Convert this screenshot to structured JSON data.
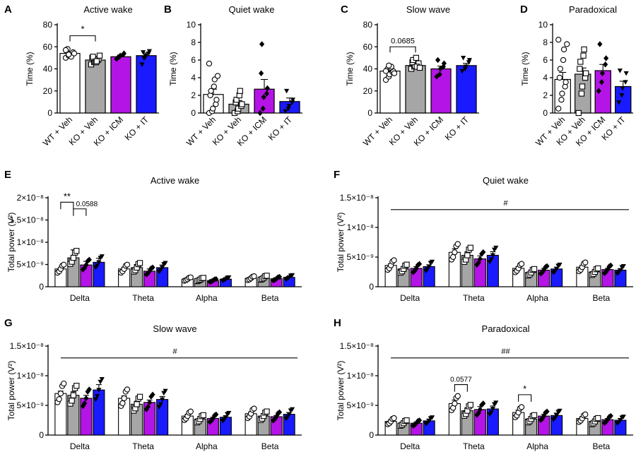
{
  "colors": {
    "wt_veh": "#ffffff",
    "ko_veh": "#a6a6a6",
    "ko_icm": "#b414e6",
    "ko_it": "#1a1aff",
    "outline": "#000000"
  },
  "groups": [
    "WT + Veh",
    "KO + Veh",
    "KO + ICM",
    "KO + IT"
  ],
  "markers": [
    "circle-open",
    "square-open",
    "diamond-filled",
    "triangle-down-filled"
  ],
  "chart_data": [
    {
      "panel": "A",
      "type": "bar",
      "title": "Active wake",
      "ylabel": "Time (%)",
      "ylim": [
        0,
        80
      ],
      "yticks": [
        0,
        20,
        40,
        60,
        80
      ],
      "categories": [
        "WT + Veh",
        "KO + Veh",
        "KO + ICM",
        "KO + IT"
      ],
      "values": [
        54,
        48,
        51,
        52
      ],
      "errors": [
        1.3,
        1.5,
        1.6,
        2.5
      ],
      "points": [
        [
          50,
          52,
          53,
          54,
          55,
          56,
          58,
          52,
          51,
          54,
          57,
          53
        ],
        [
          44,
          46,
          47,
          48,
          49,
          50,
          51,
          46,
          47,
          52
        ],
        [
          49,
          51,
          52,
          53,
          54,
          50
        ],
        [
          44,
          50,
          52,
          54,
          56,
          55,
          50
        ]
      ],
      "brackets": [
        {
          "groups": [
            0,
            1
          ],
          "label": "*"
        }
      ]
    },
    {
      "panel": "B",
      "type": "bar",
      "title": "Quiet wake",
      "ylabel": "Time (%)",
      "ylim": [
        0,
        10
      ],
      "yticks": [
        0,
        2,
        4,
        6,
        8,
        10
      ],
      "categories": [
        "WT + Veh",
        "KO + Veh",
        "KO + ICM",
        "KO + IT"
      ],
      "values": [
        2.1,
        1.0,
        2.7,
        1.3
      ],
      "errors": [
        0.6,
        0.4,
        1.1,
        0.4
      ],
      "points": [
        [
          0,
          0.2,
          0.5,
          1,
          1.5,
          2,
          2.5,
          3,
          3.8,
          4.2,
          5.6
        ],
        [
          0,
          0.2,
          0.5,
          0.8,
          1,
          1.2,
          1.5,
          2,
          2.5
        ],
        [
          0,
          0.5,
          1.8,
          2.2,
          2.8,
          4.5,
          7.8
        ],
        [
          0.2,
          0.5,
          0.8,
          1.2,
          1.5,
          2.5
        ]
      ],
      "brackets": []
    },
    {
      "panel": "C",
      "type": "bar",
      "title": "Slow wave",
      "ylabel": "Time (%)",
      "ylim": [
        0,
        80
      ],
      "yticks": [
        0,
        20,
        40,
        60,
        80
      ],
      "categories": [
        "WT + Veh",
        "KO + Veh",
        "KO + ICM",
        "KO + IT"
      ],
      "values": [
        38,
        43,
        40,
        43
      ],
      "errors": [
        1.5,
        1.5,
        2.5,
        2
      ],
      "points": [
        [
          30,
          33,
          35,
          37,
          38,
          39,
          40,
          41,
          42,
          36,
          38,
          43
        ],
        [
          40,
          42,
          43,
          44,
          45,
          46,
          48,
          50,
          42,
          41
        ],
        [
          33,
          35,
          40,
          42,
          45,
          48
        ],
        [
          38,
          40,
          42,
          46,
          48,
          50
        ]
      ],
      "brackets": [
        {
          "groups": [
            0,
            1
          ],
          "label": "0.0685"
        }
      ]
    },
    {
      "panel": "D",
      "type": "bar",
      "title": "Paradoxical",
      "ylabel": "Time (%)",
      "ylim": [
        0,
        10
      ],
      "yticks": [
        0,
        2,
        4,
        6,
        8,
        10
      ],
      "categories": [
        "WT + Veh",
        "KO + Veh",
        "KO + ICM",
        "KO + IT"
      ],
      "values": [
        3.8,
        4.4,
        4.8,
        3.0
      ],
      "errors": [
        0.8,
        0.7,
        0.7,
        0.6
      ],
      "points": [
        [
          0.5,
          1.5,
          2.2,
          3,
          3.5,
          4,
          5,
          6,
          7.2,
          7.8,
          8.3
        ],
        [
          0,
          2.2,
          3,
          4,
          4.5,
          5,
          5.8,
          6.5,
          7.2
        ],
        [
          2.5,
          3.5,
          4.5,
          5.5,
          6.2,
          7.8
        ],
        [
          1.2,
          2,
          2.8,
          3.5,
          4.5,
          4.8
        ]
      ],
      "brackets": []
    },
    {
      "panel": "E",
      "type": "bar",
      "title": "Active wake",
      "ylabel": "Total power (V²)",
      "ylim": [
        0,
        2e-08
      ],
      "yticklabels": [
        "0",
        "5×10⁻⁹",
        "1×10⁻⁸",
        "1.5×10⁻⁸",
        "2×10⁻⁸"
      ],
      "yticks": [
        0,
        5e-09,
        1e-08,
        1.5e-08,
        2e-08
      ],
      "categories": [
        "Delta",
        "Theta",
        "Alpha",
        "Beta"
      ],
      "series": [
        {
          "values": [
            4e-09,
            6.5e-09,
            4.9e-09,
            5.5e-09
          ],
          "errors": [
            3e-10,
            1.8e-09,
            8e-10,
            9e-10
          ]
        },
        {
          "values": [
            4e-09,
            4.3e-09,
            3.5e-09,
            4.3e-09
          ],
          "errors": [
            4e-10,
            7e-10,
            5e-10,
            6e-10
          ]
        },
        {
          "values": [
            1.7e-09,
            1.6e-09,
            1.4e-09,
            1.7e-09
          ],
          "errors": [
            2e-10,
            2e-10,
            1e-10,
            2e-10
          ]
        },
        {
          "values": [
            1.9e-09,
            2e-09,
            1.8e-09,
            2.1e-09
          ],
          "errors": [
            2e-10,
            3e-10,
            2e-10,
            2e-10
          ]
        }
      ],
      "brackets": [
        {
          "category": 0,
          "groups": [
            0,
            1
          ],
          "label": "**"
        },
        {
          "category": 0,
          "groups": [
            1,
            2
          ],
          "label": "0.0588"
        }
      ],
      "hash_line": null
    },
    {
      "panel": "F",
      "type": "bar",
      "title": "Quiet wake",
      "ylabel": "Total power (V²)",
      "ylim": [
        0,
        1.5e-08
      ],
      "yticklabels": [
        "0",
        "5×10⁻⁹",
        "1×10⁻⁸",
        "1.5×10⁻⁸"
      ],
      "yticks": [
        0,
        5e-09,
        1e-08,
        1.5e-08
      ],
      "categories": [
        "Delta",
        "Theta",
        "Alpha",
        "Beta"
      ],
      "series": [
        {
          "values": [
            3.6e-09,
            3e-09,
            3.1e-09,
            3.4e-09
          ],
          "errors": [
            3e-10,
            4e-10,
            3e-10,
            3e-10
          ]
        },
        {
          "values": [
            5.8e-09,
            5.3e-09,
            4.7e-09,
            5.3e-09
          ],
          "errors": [
            6e-10,
            6e-10,
            5e-10,
            6e-10
          ]
        },
        {
          "values": [
            3.1e-09,
            2.4e-09,
            2.8e-09,
            3e-09
          ],
          "errors": [
            3e-10,
            3e-10,
            3e-10,
            3e-10
          ]
        },
        {
          "values": [
            3.3e-09,
            2.5e-09,
            2.9e-09,
            2.8e-09
          ],
          "errors": [
            3e-10,
            3e-10,
            2e-10,
            2e-10
          ]
        }
      ],
      "brackets": [],
      "hash_line": {
        "label": "#",
        "value": 1.3e-08
      }
    },
    {
      "panel": "G",
      "type": "bar",
      "title": "Slow wave",
      "ylabel": "Total power (V²)",
      "ylim": [
        0,
        1.5e-08
      ],
      "yticklabels": [
        "0",
        "5×10⁻⁹",
        "1×10⁻⁸",
        "1.5×10⁻⁸"
      ],
      "yticks": [
        0,
        5e-09,
        1e-08,
        1.5e-08
      ],
      "categories": [
        "Delta",
        "Theta",
        "Alpha",
        "Beta"
      ],
      "series": [
        {
          "values": [
            7e-09,
            6.7e-09,
            6.2e-09,
            7.6e-09
          ],
          "errors": [
            4e-10,
            6e-10,
            5e-10,
            9e-10
          ]
        },
        {
          "values": [
            6.2e-09,
            5.2e-09,
            5.5e-09,
            6e-09
          ],
          "errors": [
            4e-10,
            5e-10,
            4e-10,
            5e-10
          ]
        },
        {
          "values": [
            3.2e-09,
            2.7e-09,
            2.8e-09,
            3e-09
          ],
          "errors": [
            3e-10,
            3e-10,
            2e-10,
            2e-10
          ]
        },
        {
          "values": [
            3.6e-09,
            3.2e-09,
            3.1e-09,
            3.5e-09
          ],
          "errors": [
            3e-10,
            3e-10,
            2e-10,
            3e-10
          ]
        }
      ],
      "brackets": [],
      "hash_line": {
        "label": "#",
        "value": 1.3e-08
      }
    },
    {
      "panel": "H",
      "type": "bar",
      "title": "Paradoxical",
      "ylabel": "Total power (V²)",
      "ylim": [
        0,
        1.5e-08
      ],
      "yticklabels": [
        "0",
        "5×10⁻⁹",
        "1×10⁻⁸",
        "1.5×10⁻⁸"
      ],
      "yticks": [
        0,
        5e-09,
        1e-08,
        1.5e-08
      ],
      "categories": [
        "Delta",
        "Theta",
        "Alpha",
        "Beta"
      ],
      "series": [
        {
          "values": [
            2.3e-09,
            2e-09,
            2e-09,
            2.4e-09
          ],
          "errors": [
            3e-10,
            3e-10,
            2e-10,
            3e-10
          ]
        },
        {
          "values": [
            5.3e-09,
            4.1e-09,
            4.3e-09,
            4.4e-09
          ],
          "errors": [
            6e-10,
            5e-10,
            5e-10,
            5e-10
          ]
        },
        {
          "values": [
            3.8e-09,
            2.7e-09,
            3.2e-09,
            3.3e-09
          ],
          "errors": [
            4e-10,
            3e-10,
            3e-10,
            4e-10
          ]
        },
        {
          "values": [
            2.8e-09,
            2.3e-09,
            2.6e-09,
            2.5e-09
          ],
          "errors": [
            3e-10,
            3e-10,
            2e-10,
            3e-10
          ]
        }
      ],
      "brackets": [
        {
          "category": 1,
          "groups": [
            0,
            1
          ],
          "label": "0.0577"
        },
        {
          "category": 2,
          "groups": [
            0,
            1
          ],
          "label": "*"
        }
      ],
      "hash_line": {
        "label": "##",
        "value": 1.3e-08
      }
    }
  ]
}
